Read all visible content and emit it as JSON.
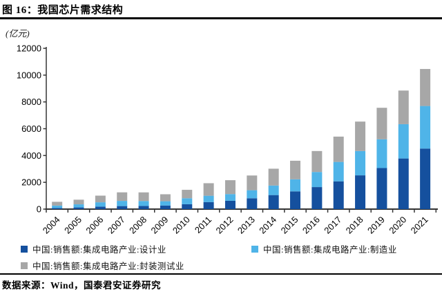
{
  "header": {
    "title": "图 16：我国芯片需求结构"
  },
  "footer": {
    "source": "数据来源：Wind，国泰君安证券研究"
  },
  "chart_data": {
    "type": "bar",
    "stacked": true,
    "title": "我国芯片需求结构",
    "unit_label": "(亿元)",
    "xlabel": "",
    "ylabel": "(亿元)",
    "ylim": [
      0,
      12000
    ],
    "yticks": [
      0,
      2000,
      4000,
      6000,
      8000,
      10000,
      12000
    ],
    "grid": false,
    "legend_position": "bottom",
    "categories": [
      "2004",
      "2005",
      "2006",
      "2007",
      "2008",
      "2009",
      "2010",
      "2011",
      "2012",
      "2013",
      "2014",
      "2015",
      "2016",
      "2017",
      "2018",
      "2019",
      "2020",
      "2021"
    ],
    "series": [
      {
        "name": "中国:销售额:集成电路产业:设计业",
        "color": "#15509E",
        "values": [
          81.5,
          124.3,
          186.2,
          225.7,
          235.2,
          269.9,
          363.9,
          526.4,
          621.7,
          808.8,
          1047.4,
          1325.0,
          1644.3,
          2073.5,
          2519.3,
          3063.5,
          3778.4,
          4519.0
        ]
      },
      {
        "name": "中国:销售额:集成电路产业:制造业",
        "color": "#4FB4E8",
        "values": [
          181.3,
          232.9,
          323.1,
          387.6,
          369.1,
          317.0,
          447.1,
          471.7,
          501.1,
          600.9,
          712.1,
          900.8,
          1126.9,
          1448.1,
          1818.2,
          2149.1,
          2560.1,
          3176.3
        ]
      },
      {
        "name": "中国:销售额:集成电路产业:封装测试业",
        "color": "#A7A7A7",
        "values": [
          282.7,
          345.2,
          496.8,
          638.4,
          644.3,
          522.6,
          629.2,
          935.6,
          1035.7,
          1098.8,
          1255.9,
          1384.0,
          1564.3,
          1889.7,
          2193.9,
          2349.7,
          2509.5,
          2763.0
        ]
      }
    ],
    "axis_color": "#333333"
  }
}
